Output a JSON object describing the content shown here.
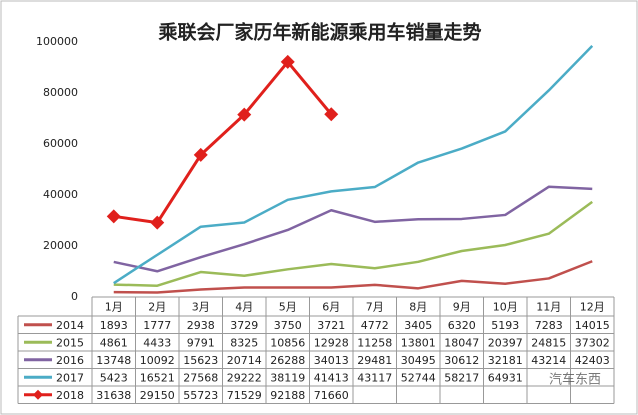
{
  "chart_data": {
    "type": "line",
    "title": "乘联会厂家历年新能源乘用车销量走势",
    "categories": [
      "1月",
      "2月",
      "3月",
      "4月",
      "5月",
      "6月",
      "7月",
      "8月",
      "9月",
      "10月",
      "11月",
      "12月"
    ],
    "ylim": [
      0,
      100000
    ],
    "yticks": [
      0,
      20000,
      40000,
      60000,
      80000,
      100000
    ],
    "grid": false,
    "watermark": "汽车东西",
    "series": [
      {
        "name": "2014",
        "color": "#c0504d",
        "values": [
          1893,
          1777,
          2938,
          3729,
          3750,
          3721,
          4772,
          3405,
          6320,
          5193,
          7283,
          14015
        ]
      },
      {
        "name": "2015",
        "color": "#9bbb59",
        "values": [
          4861,
          4433,
          9791,
          8325,
          10856,
          12928,
          11258,
          13801,
          18047,
          20397,
          24815,
          37302
        ]
      },
      {
        "name": "2016",
        "color": "#8064a2",
        "values": [
          13748,
          10092,
          15623,
          20714,
          26288,
          34013,
          29481,
          30495,
          30612,
          32181,
          43214,
          42403
        ]
      },
      {
        "name": "2017",
        "color": "#4bacc6",
        "values": [
          5423,
          16521,
          27568,
          29222,
          38119,
          41413,
          43117,
          52744,
          58217,
          64931,
          81000,
          98500
        ],
        "value_labels": [
          "5423",
          "16521",
          "27568",
          "29222",
          "38119",
          "41413",
          "43117",
          "52744",
          "58217",
          "64931",
          null,
          null
        ]
      },
      {
        "name": "2018",
        "color": "#e0201c",
        "marker": "diamond",
        "values": [
          31638,
          29150,
          55723,
          71529,
          92188,
          71660,
          null,
          null,
          null,
          null,
          null,
          null
        ]
      }
    ]
  }
}
